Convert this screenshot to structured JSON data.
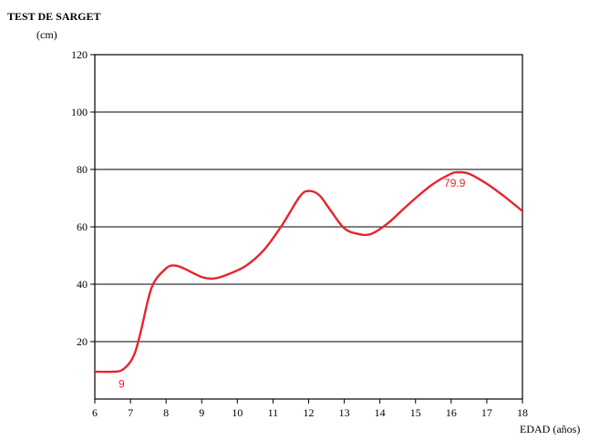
{
  "chart_data": {
    "type": "line",
    "title": "TEST DE SARGET",
    "ylabel": "(cm)",
    "xlabel": "EDAD (años)",
    "xlim": [
      6,
      18
    ],
    "ylim": [
      0,
      120
    ],
    "x_ticks": [
      6,
      7,
      8,
      9,
      10,
      11,
      12,
      13,
      14,
      15,
      16,
      17,
      18
    ],
    "y_ticks": [
      20,
      40,
      60,
      80,
      100,
      120
    ],
    "grid": "horizontal",
    "series": [
      {
        "color": "#e8232f",
        "x": [
          6.0,
          6.5,
          6.75,
          7.0,
          7.15,
          7.3,
          7.6,
          8.0,
          8.25,
          8.5,
          9.0,
          9.35,
          9.75,
          10.25,
          10.75,
          11.25,
          11.75,
          12.0,
          12.3,
          12.6,
          13.0,
          13.4,
          13.75,
          14.2,
          14.6,
          15.0,
          15.5,
          16.0,
          16.2,
          16.5,
          17.0,
          17.5,
          18.0
        ],
        "y": [
          9.5,
          9.5,
          10.0,
          13.0,
          17.0,
          24.0,
          39.0,
          45.5,
          46.5,
          45.5,
          42.5,
          42.0,
          43.5,
          46.5,
          52.0,
          60.5,
          70.5,
          72.5,
          71.0,
          66.0,
          59.5,
          57.5,
          57.5,
          61.0,
          65.5,
          70.0,
          75.0,
          78.5,
          79.0,
          78.5,
          75.0,
          70.5,
          65.5
        ]
      }
    ],
    "annotations": [
      {
        "text": "9",
        "x": 6.75,
        "y": 9.0,
        "color": "#e8232f"
      },
      {
        "text": "79.9",
        "x": 16.1,
        "y": 79.0,
        "color": "#e8232f"
      }
    ]
  }
}
